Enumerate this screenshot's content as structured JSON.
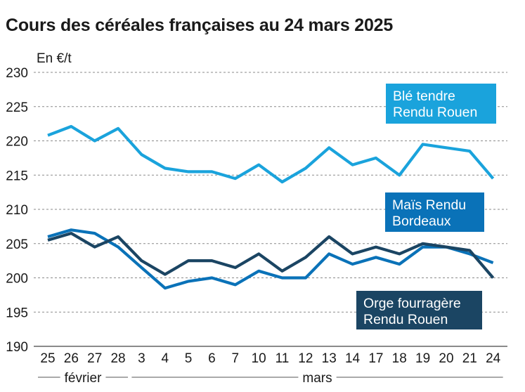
{
  "chart_data": {
    "type": "line",
    "title": "Cours des céréales françaises au 24 mars 2025",
    "ylabel": "En €/t",
    "xlabel": "",
    "ylim": [
      190,
      230
    ],
    "yticks": [
      190,
      195,
      200,
      205,
      210,
      215,
      220,
      225,
      230
    ],
    "grid": true,
    "categories": [
      "25",
      "26",
      "27",
      "28",
      "3",
      "4",
      "5",
      "6",
      "7",
      "10",
      "11",
      "12",
      "13",
      "14",
      "17",
      "18",
      "19",
      "20",
      "21",
      "24"
    ],
    "month_groups": [
      {
        "label": "février",
        "from": 0,
        "to": 3
      },
      {
        "label": "mars",
        "from": 4,
        "to": 19
      }
    ],
    "series": [
      {
        "name": "Blé tendre Rendu Rouen",
        "legend_lines": [
          "Blé tendre",
          "Rendu Rouen"
        ],
        "color": "#1aa3dc",
        "values": [
          220.8,
          222.1,
          220.0,
          221.8,
          218.0,
          216.0,
          215.5,
          215.5,
          214.5,
          216.5,
          214.0,
          216.0,
          219.0,
          216.5,
          217.5,
          215.0,
          219.5,
          219.0,
          218.5,
          214.5
        ]
      },
      {
        "name": "Maïs Rendu Bordeaux",
        "legend_lines": [
          "Maïs Rendu",
          "Bordeaux"
        ],
        "color": "#0a72b8",
        "values": [
          206.0,
          207.0,
          206.5,
          204.5,
          201.5,
          198.5,
          199.5,
          200.0,
          199.0,
          201.0,
          200.0,
          200.0,
          203.5,
          202.0,
          203.0,
          202.0,
          204.5,
          204.5,
          203.5,
          202.2
        ]
      },
      {
        "name": "Orge fourragère Rendu Rouen",
        "legend_lines": [
          "Orge fourragère",
          "Rendu Rouen"
        ],
        "color": "#1b4563",
        "values": [
          205.5,
          206.5,
          204.5,
          206.0,
          202.5,
          200.5,
          202.5,
          202.5,
          201.5,
          203.5,
          201.0,
          203.0,
          206.0,
          203.5,
          204.5,
          203.5,
          205.0,
          204.5,
          204.0,
          200.0
        ]
      }
    ]
  }
}
